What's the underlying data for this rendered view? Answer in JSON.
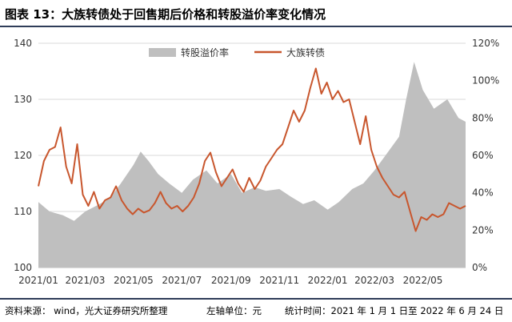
{
  "title": "图表  13：大族转债处于回售期后价格和转股溢价率变化情况",
  "footer": {
    "source": "资料来源：   wind，光大证券研究所整理",
    "unit": "左轴单位：元",
    "period": "统计时间：2021 年 1 月 1 日至 2022 年 6 月 24 日"
  },
  "chart_data": {
    "type": "line",
    "title": "",
    "x_tick_labels": [
      "2021/01",
      "2021/03",
      "2021/05",
      "2021/07",
      "2021/09",
      "2021/11",
      "2022/01",
      "2022/03",
      "2022/05"
    ],
    "x_tick_dates": [
      "2021-01-01",
      "2021-03-01",
      "2021-05-01",
      "2021-07-01",
      "2021-09-01",
      "2021-11-01",
      "2022-01-01",
      "2022-03-01",
      "2022-05-01"
    ],
    "x_range": [
      "2021-01-01",
      "2022-06-24"
    ],
    "y_left": {
      "range": [
        100,
        140
      ],
      "ticks": [
        "100",
        "110",
        "120",
        "130",
        "140"
      ]
    },
    "y_right": {
      "range": [
        0,
        1.2
      ],
      "ticks": [
        "0%",
        "20%",
        "40%",
        "60%",
        "80%",
        "100%",
        "120%"
      ]
    },
    "grid": true,
    "legend_position": "top-center",
    "series": [
      {
        "name": "转股溢价率",
        "kind": "area",
        "axis": "right",
        "color": "#bfbfbf",
        "points": [
          [
            "2021-01-01",
            0.35
          ],
          [
            "2021-01-15",
            0.3
          ],
          [
            "2021-02-01",
            0.28
          ],
          [
            "2021-02-15",
            0.25
          ],
          [
            "2021-03-01",
            0.3
          ],
          [
            "2021-03-15",
            0.33
          ],
          [
            "2021-04-01",
            0.37
          ],
          [
            "2021-04-15",
            0.45
          ],
          [
            "2021-05-01",
            0.55
          ],
          [
            "2021-05-10",
            0.62
          ],
          [
            "2021-05-20",
            0.57
          ],
          [
            "2021-06-01",
            0.5
          ],
          [
            "2021-06-15",
            0.45
          ],
          [
            "2021-07-01",
            0.4
          ],
          [
            "2021-07-15",
            0.47
          ],
          [
            "2021-08-01",
            0.52
          ],
          [
            "2021-08-15",
            0.45
          ],
          [
            "2021-09-01",
            0.5
          ],
          [
            "2021-09-15",
            0.4
          ],
          [
            "2021-10-01",
            0.43
          ],
          [
            "2021-10-15",
            0.41
          ],
          [
            "2021-11-01",
            0.42
          ],
          [
            "2021-11-15",
            0.38
          ],
          [
            "2021-12-01",
            0.34
          ],
          [
            "2021-12-15",
            0.36
          ],
          [
            "2022-01-01",
            0.31
          ],
          [
            "2022-01-15",
            0.35
          ],
          [
            "2022-02-01",
            0.42
          ],
          [
            "2022-02-15",
            0.45
          ],
          [
            "2022-03-01",
            0.52
          ],
          [
            "2022-03-15",
            0.6
          ],
          [
            "2022-04-01",
            0.7
          ],
          [
            "2022-04-10",
            0.9
          ],
          [
            "2022-04-20",
            1.1
          ],
          [
            "2022-05-01",
            0.95
          ],
          [
            "2022-05-15",
            0.85
          ],
          [
            "2022-06-01",
            0.9
          ],
          [
            "2022-06-15",
            0.8
          ],
          [
            "2022-06-24",
            0.78
          ]
        ]
      },
      {
        "name": "大族转债",
        "kind": "line",
        "axis": "left",
        "color": "#c8562d",
        "points": [
          [
            "2021-01-01",
            114.5
          ],
          [
            "2021-01-08",
            119.0
          ],
          [
            "2021-01-15",
            121.0
          ],
          [
            "2021-01-22",
            121.5
          ],
          [
            "2021-01-29",
            125.0
          ],
          [
            "2021-02-05",
            118.0
          ],
          [
            "2021-02-12",
            115.0
          ],
          [
            "2021-02-19",
            122.0
          ],
          [
            "2021-02-26",
            113.0
          ],
          [
            "2021-03-05",
            111.0
          ],
          [
            "2021-03-12",
            113.5
          ],
          [
            "2021-03-19",
            110.5
          ],
          [
            "2021-03-26",
            112.0
          ],
          [
            "2021-04-02",
            112.5
          ],
          [
            "2021-04-09",
            114.5
          ],
          [
            "2021-04-16",
            112.0
          ],
          [
            "2021-04-23",
            110.5
          ],
          [
            "2021-04-30",
            109.5
          ],
          [
            "2021-05-07",
            110.5
          ],
          [
            "2021-05-14",
            109.8
          ],
          [
            "2021-05-21",
            110.2
          ],
          [
            "2021-05-28",
            111.5
          ],
          [
            "2021-06-04",
            113.5
          ],
          [
            "2021-06-11",
            111.5
          ],
          [
            "2021-06-18",
            110.5
          ],
          [
            "2021-06-25",
            111.0
          ],
          [
            "2021-07-02",
            110.0
          ],
          [
            "2021-07-09",
            111.0
          ],
          [
            "2021-07-16",
            112.5
          ],
          [
            "2021-07-23",
            115.0
          ],
          [
            "2021-07-30",
            119.0
          ],
          [
            "2021-08-06",
            120.5
          ],
          [
            "2021-08-13",
            117.0
          ],
          [
            "2021-08-20",
            114.5
          ],
          [
            "2021-08-27",
            116.0
          ],
          [
            "2021-09-03",
            117.5
          ],
          [
            "2021-09-10",
            115.0
          ],
          [
            "2021-09-17",
            113.5
          ],
          [
            "2021-09-24",
            116.0
          ],
          [
            "2021-10-01",
            114.0
          ],
          [
            "2021-10-08",
            115.5
          ],
          [
            "2021-10-15",
            118.0
          ],
          [
            "2021-10-22",
            119.5
          ],
          [
            "2021-10-29",
            121.0
          ],
          [
            "2021-11-05",
            122.0
          ],
          [
            "2021-11-12",
            125.0
          ],
          [
            "2021-11-19",
            128.0
          ],
          [
            "2021-11-26",
            126.0
          ],
          [
            "2021-12-03",
            128.0
          ],
          [
            "2021-12-10",
            132.0
          ],
          [
            "2021-12-17",
            135.5
          ],
          [
            "2021-12-24",
            131.0
          ],
          [
            "2021-12-31",
            133.0
          ],
          [
            "2022-01-07",
            130.0
          ],
          [
            "2022-01-14",
            131.5
          ],
          [
            "2022-01-21",
            129.5
          ],
          [
            "2022-01-28",
            130.0
          ],
          [
            "2022-02-04",
            126.0
          ],
          [
            "2022-02-11",
            122.0
          ],
          [
            "2022-02-18",
            127.0
          ],
          [
            "2022-02-25",
            121.0
          ],
          [
            "2022-03-04",
            118.0
          ],
          [
            "2022-03-11",
            116.0
          ],
          [
            "2022-03-18",
            114.5
          ],
          [
            "2022-03-25",
            113.0
          ],
          [
            "2022-04-01",
            112.5
          ],
          [
            "2022-04-08",
            113.5
          ],
          [
            "2022-04-15",
            110.0
          ],
          [
            "2022-04-22",
            106.5
          ],
          [
            "2022-04-29",
            109.0
          ],
          [
            "2022-05-06",
            108.5
          ],
          [
            "2022-05-13",
            109.5
          ],
          [
            "2022-05-20",
            109.0
          ],
          [
            "2022-05-27",
            109.5
          ],
          [
            "2022-06-03",
            111.5
          ],
          [
            "2022-06-10",
            111.0
          ],
          [
            "2022-06-17",
            110.5
          ],
          [
            "2022-06-24",
            111.0
          ]
        ]
      }
    ]
  }
}
